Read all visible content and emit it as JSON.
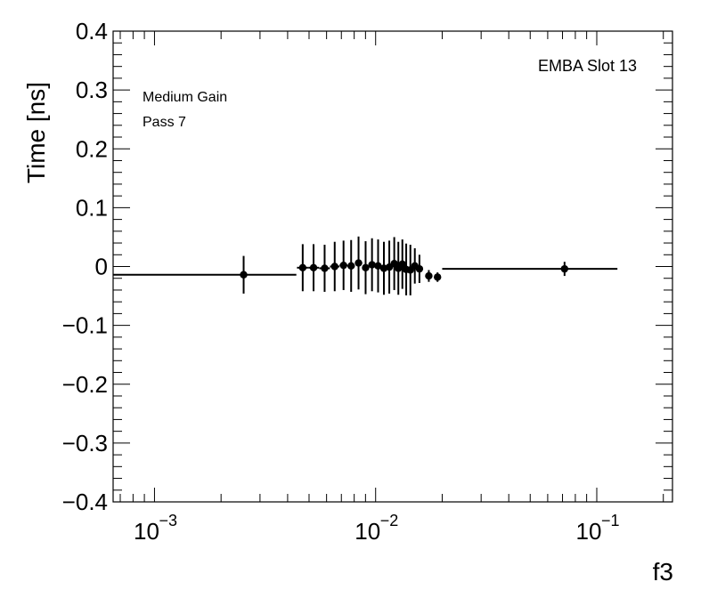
{
  "chart_data": {
    "type": "scatter",
    "xlabel": "f3",
    "ylabel": "Time [ns]",
    "xscale": "log",
    "xlim": [
      0.00065,
      0.22
    ],
    "ylim": [
      -0.4,
      0.4
    ],
    "grid": false,
    "yticks": [
      {
        "value": 0.4,
        "label": "0.4"
      },
      {
        "value": 0.3,
        "label": "0.3"
      },
      {
        "value": 0.2,
        "label": "0.2"
      },
      {
        "value": 0.1,
        "label": "0.1"
      },
      {
        "value": 0.0,
        "label": "0"
      },
      {
        "value": -0.1,
        "label": "−0.1"
      },
      {
        "value": -0.2,
        "label": "−0.2"
      },
      {
        "value": -0.3,
        "label": "−0.3"
      },
      {
        "value": -0.4,
        "label": "−0.4"
      }
    ],
    "xticks": [
      {
        "value": 0.001,
        "base": "10",
        "exp": "−3"
      },
      {
        "value": 0.01,
        "base": "10",
        "exp": "−2"
      },
      {
        "value": 0.1,
        "base": "10",
        "exp": "−1"
      }
    ],
    "annotations": {
      "gain": "Medium Gain",
      "pass": "Pass 7",
      "slot": "EMBA Slot 13"
    },
    "points": [
      {
        "x": 0.00253,
        "y": -0.014,
        "xlo": 0.00065,
        "xhi": 0.00438,
        "err": 0.032
      },
      {
        "x": 0.00468,
        "y": -0.002,
        "xlo": 0.00441,
        "xhi": 0.00495,
        "err": 0.04
      },
      {
        "x": 0.00524,
        "y": -0.002,
        "xlo": 0.00496,
        "xhi": 0.00555,
        "err": 0.04
      },
      {
        "x": 0.00588,
        "y": -0.003,
        "xlo": 0.00556,
        "xhi": 0.00621,
        "err": 0.04
      },
      {
        "x": 0.00653,
        "y": 0.0,
        "xlo": 0.00622,
        "xhi": 0.00686,
        "err": 0.042
      },
      {
        "x": 0.00716,
        "y": 0.002,
        "xlo": 0.00687,
        "xhi": 0.00745,
        "err": 0.042
      },
      {
        "x": 0.00775,
        "y": 0.001,
        "xlo": 0.00746,
        "xhi": 0.00805,
        "err": 0.044
      },
      {
        "x": 0.00837,
        "y": 0.006,
        "xlo": 0.00806,
        "xhi": 0.00869,
        "err": 0.045
      },
      {
        "x": 0.00901,
        "y": -0.002,
        "xlo": 0.0087,
        "xhi": 0.00934,
        "err": 0.045
      },
      {
        "x": 0.00963,
        "y": 0.003,
        "xlo": 0.00935,
        "xhi": 0.00994,
        "err": 0.045
      },
      {
        "x": 0.01026,
        "y": 0.001,
        "xlo": 0.00995,
        "xhi": 0.01058,
        "err": 0.045
      },
      {
        "x": 0.0109,
        "y": -0.003,
        "xlo": 0.01059,
        "xhi": 0.01122,
        "err": 0.045
      },
      {
        "x": 0.01153,
        "y": -0.001,
        "xlo": 0.01123,
        "xhi": 0.01185,
        "err": 0.045
      },
      {
        "x": 0.01214,
        "y": 0.005,
        "xlo": 0.01186,
        "xhi": 0.0124,
        "err": 0.045
      },
      {
        "x": 0.01267,
        "y": -0.003,
        "xlo": 0.01241,
        "xhi": 0.01294,
        "err": 0.045
      },
      {
        "x": 0.01321,
        "y": 0.004,
        "xlo": 0.01295,
        "xhi": 0.01348,
        "err": 0.042
      },
      {
        "x": 0.01375,
        "y": -0.005,
        "xlo": 0.01349,
        "xhi": 0.01405,
        "err": 0.044
      },
      {
        "x": 0.01436,
        "y": -0.006,
        "xlo": 0.01406,
        "xhi": 0.0147,
        "err": 0.043
      },
      {
        "x": 0.01504,
        "y": 0.001,
        "xlo": 0.01471,
        "xhi": 0.01541,
        "err": 0.03
      },
      {
        "x": 0.01578,
        "y": -0.004,
        "xlo": 0.01542,
        "xhi": 0.01612,
        "err": 0.024
      },
      {
        "x": 0.0174,
        "y": -0.016,
        "xlo": 0.0169,
        "xhi": 0.0179,
        "err": 0.01
      },
      {
        "x": 0.01905,
        "y": -0.018,
        "xlo": 0.0185,
        "xhi": 0.0196,
        "err": 0.008
      },
      {
        "x": 0.0715,
        "y": -0.004,
        "xlo": 0.02,
        "xhi": 0.124,
        "err": 0.012
      }
    ]
  }
}
